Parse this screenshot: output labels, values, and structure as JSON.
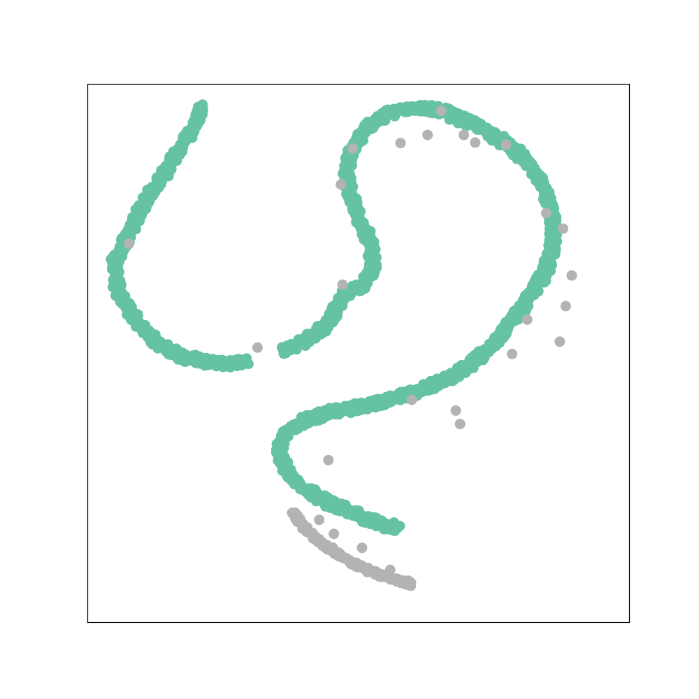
{
  "chart_data": {
    "type": "scatter",
    "title": "",
    "xlabel": "",
    "ylabel": "",
    "axes_ticks": "none",
    "grid": false,
    "legend": "none",
    "xlim": [
      0,
      100
    ],
    "ylim": [
      0,
      100
    ],
    "colors": {
      "green": "#66c2a5",
      "gray": "#b3b3b3"
    },
    "series": [
      {
        "color_key": "green",
        "segments": [
          [
            [
              21.1,
              95.5
            ],
            [
              20.0,
              93.0
            ],
            [
              18.6,
              90.0
            ],
            [
              15.5,
              85.5
            ],
            [
              13.0,
              81.5
            ],
            [
              9.8,
              76.5
            ],
            [
              5.0,
              67.0
            ],
            [
              5.6,
              61.0
            ],
            [
              9.5,
              55.5
            ],
            [
              13.0,
              52.0
            ],
            [
              17.0,
              49.5
            ],
            [
              21.0,
              48.5
            ],
            [
              25.5,
              48.0
            ],
            [
              29.5,
              48.3
            ]
          ],
          [
            [
              36.0,
              50.5
            ],
            [
              39.6,
              52.0
            ],
            [
              42.8,
              54.0
            ],
            [
              45.5,
              57.0
            ],
            [
              47.0,
              60.5
            ],
            [
              50.5,
              62.5
            ],
            [
              52.7,
              65.5
            ],
            [
              52.4,
              70.5
            ],
            [
              50.5,
              74.0
            ],
            [
              49.0,
              78.0
            ],
            [
              47.7,
              83.0
            ],
            [
              48.8,
              87.5
            ],
            [
              51.2,
              91.5
            ],
            [
              55.5,
              94.5
            ],
            [
              60.5,
              95.7
            ],
            [
              65.5,
              95.0
            ],
            [
              70.0,
              93.0
            ],
            [
              74.5,
              90.8
            ],
            [
              78.5,
              88.0
            ],
            [
              82.0,
              84.5
            ],
            [
              84.5,
              80.0
            ],
            [
              85.8,
              75.5
            ],
            [
              86.0,
              70.5
            ],
            [
              84.5,
              65.0
            ],
            [
              80.5,
              59.0
            ],
            [
              77.0,
              54.0
            ],
            [
              72.5,
              49.2
            ],
            [
              67.0,
              45.3
            ],
            [
              60.0,
              42.5
            ],
            [
              52.0,
              40.3
            ],
            [
              45.0,
              39.0
            ],
            [
              40.0,
              37.5
            ],
            [
              37.0,
              35.5
            ],
            [
              35.5,
              32.5
            ],
            [
              36.0,
              29.5
            ],
            [
              38.0,
              26.5
            ],
            [
              41.5,
              24.0
            ],
            [
              45.0,
              22.0
            ],
            [
              48.5,
              20.5
            ],
            [
              52.0,
              19.0
            ],
            [
              55.0,
              18.0
            ],
            [
              57.5,
              17.5
            ]
          ]
        ],
        "density": 78,
        "spread": 0.75
      },
      {
        "color_key": "gray",
        "points": [
          [
            7.7,
            70.3
          ],
          [
            31.4,
            51.0
          ],
          [
            47.1,
            62.7
          ],
          [
            46.8,
            81.3
          ],
          [
            49.0,
            88.0
          ],
          [
            57.8,
            89.0
          ],
          [
            62.8,
            90.5
          ],
          [
            65.3,
            95.0
          ],
          [
            69.5,
            90.5
          ],
          [
            71.6,
            89.1
          ],
          [
            77.3,
            88.7
          ],
          [
            84.7,
            76.0
          ],
          [
            87.8,
            73.1
          ],
          [
            89.4,
            64.4
          ],
          [
            88.3,
            58.7
          ],
          [
            87.2,
            52.1
          ],
          [
            81.2,
            56.2
          ],
          [
            78.4,
            49.8
          ],
          [
            59.9,
            41.3
          ],
          [
            68.0,
            39.3
          ],
          [
            68.8,
            36.8
          ],
          [
            44.5,
            30.1
          ],
          [
            38.2,
            20.3
          ],
          [
            42.8,
            19.0
          ],
          [
            45.5,
            16.4
          ],
          [
            50.7,
            13.8
          ],
          [
            55.9,
            9.7
          ],
          [
            59.2,
            7.7
          ]
        ],
        "trail": [
          [
            38.0,
            20.5
          ],
          [
            40.0,
            17.5
          ],
          [
            43.0,
            14.8
          ],
          [
            46.5,
            12.5
          ],
          [
            50.0,
            10.5
          ],
          [
            53.5,
            9.0
          ],
          [
            57.0,
            7.8
          ],
          [
            60.0,
            7.0
          ]
        ]
      }
    ]
  }
}
